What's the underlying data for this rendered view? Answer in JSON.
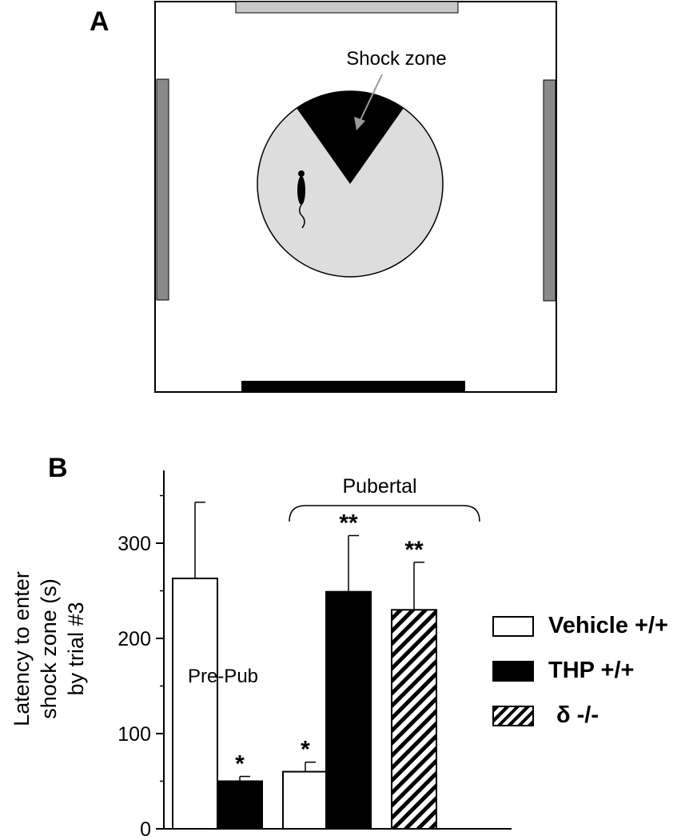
{
  "panel_a": {
    "letter": "A",
    "shock_zone_label": "Shock zone"
  },
  "panel_b": {
    "letter": "B",
    "group_label": "Pubertal",
    "prepub_label": "Pre-Pub"
  },
  "chart_data": {
    "type": "bar",
    "ylabel_lines": [
      "Latency to enter",
      "shock zone (s)",
      "by trial #3"
    ],
    "ylim": [
      0,
      370
    ],
    "yticks": [
      0,
      100,
      200,
      300
    ],
    "bars": [
      {
        "series": "Vehicle +/+",
        "value": 263,
        "error": 80,
        "sig": ""
      },
      {
        "series": "THP +/+",
        "value": 50,
        "error": 5,
        "sig": "*"
      },
      {
        "series": "Vehicle +/+",
        "value": 60,
        "error": 10,
        "sig": "*"
      },
      {
        "series": "THP +/+",
        "value": 249,
        "error": 59,
        "sig": "**"
      },
      {
        "series": "δ -/-",
        "value": 230,
        "error": 50,
        "sig": "**"
      }
    ],
    "legend": [
      {
        "name": "Vehicle +/+",
        "fill": "white"
      },
      {
        "name": "THP +/+",
        "fill": "black"
      },
      {
        "name": "δ -/-",
        "fill": "hatched"
      }
    ]
  }
}
